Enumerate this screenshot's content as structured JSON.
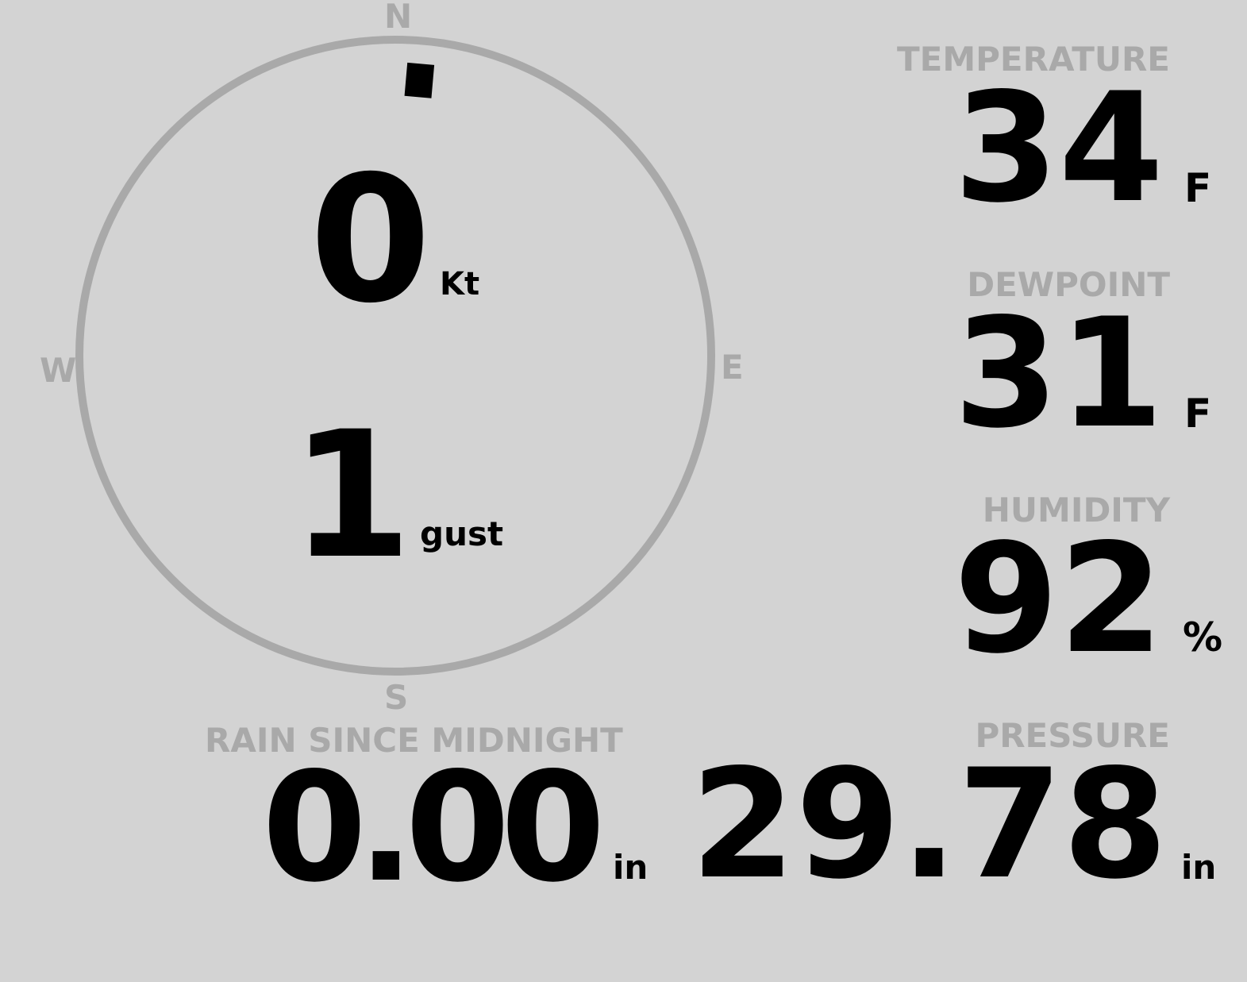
{
  "wind": {
    "speed": "0",
    "speed_unit": "Kt",
    "gust": "1",
    "gust_unit": "gust",
    "direction_deg": 5,
    "cardinals": {
      "n": "N",
      "e": "E",
      "s": "S",
      "w": "W"
    }
  },
  "rain": {
    "label": "RAIN SINCE MIDNIGHT",
    "value": "0.00",
    "unit": "in"
  },
  "temperature": {
    "label": "TEMPERATURE",
    "value": "34",
    "unit": "F"
  },
  "dewpoint": {
    "label": "DEWPOINT",
    "value": "31",
    "unit": "F"
  },
  "humidity": {
    "label": "HUMIDITY",
    "value": "92",
    "unit": "%"
  },
  "pressure": {
    "label": "PRESSURE",
    "value": "29.78",
    "unit": "in"
  },
  "colors": {
    "background": "#d3d3d3",
    "muted": "#a9a9a9",
    "value": "#000000"
  }
}
